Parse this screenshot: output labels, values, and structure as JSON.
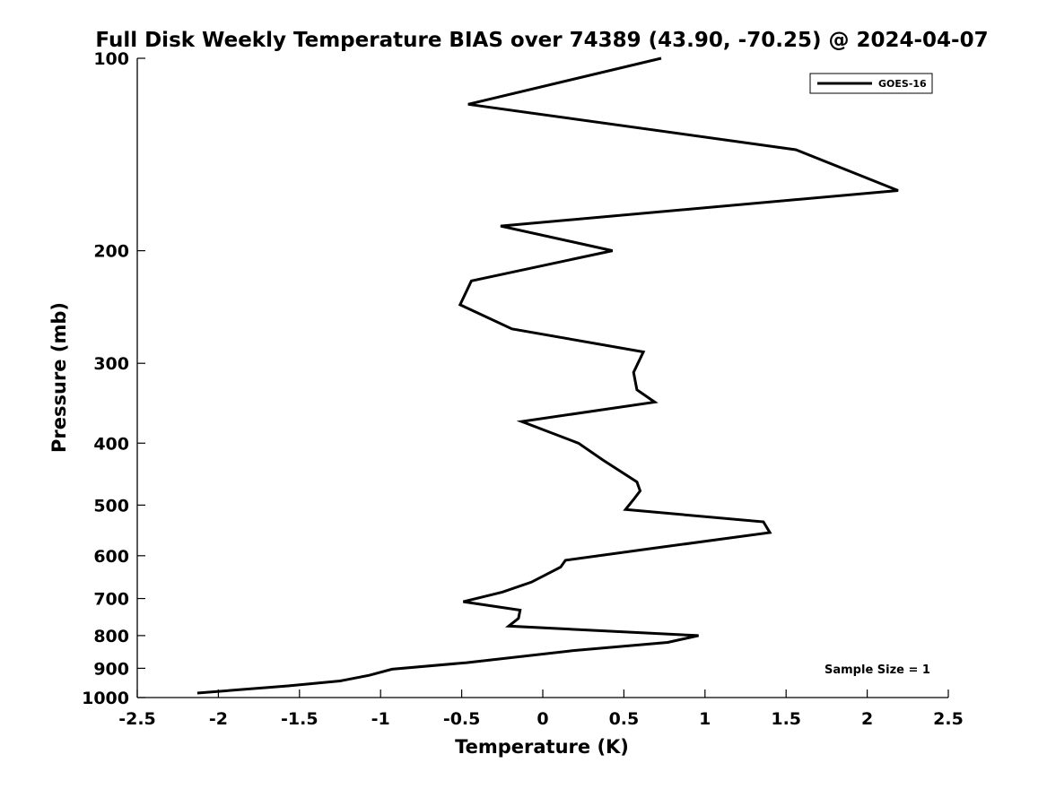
{
  "chart_data": {
    "type": "line",
    "title": "Full Disk Weekly Temperature BIAS over 74389 (43.90, -70.25) @ 2024-04-07",
    "xlabel": "Temperature (K)",
    "ylabel": "Pressure (mb)",
    "xlim": [
      -2.5,
      2.5
    ],
    "ylim": [
      100,
      1000
    ],
    "y_scale": "log",
    "y_reversed": true,
    "x_ticks": [
      "-2.5",
      "-2",
      "-1.5",
      "-1",
      "-0.5",
      "0",
      "0.5",
      "1",
      "1.5",
      "2",
      "2.5"
    ],
    "y_ticks": [
      "100",
      "200",
      "300",
      "400",
      "500",
      "600",
      "700",
      "800",
      "900",
      "1000"
    ],
    "grid": false,
    "legend": {
      "position": "top-right",
      "entries": [
        "GOES-16"
      ]
    },
    "annotation": "Sample Size = 1",
    "series": [
      {
        "name": "GOES-16",
        "color": "#000000",
        "points": [
          {
            "x": 0.73,
            "y": 100
          },
          {
            "x": -0.46,
            "y": 118
          },
          {
            "x": 1.56,
            "y": 139
          },
          {
            "x": 2.19,
            "y": 161
          },
          {
            "x": -0.26,
            "y": 183
          },
          {
            "x": 0.43,
            "y": 200
          },
          {
            "x": -0.44,
            "y": 223
          },
          {
            "x": -0.51,
            "y": 243
          },
          {
            "x": -0.19,
            "y": 265
          },
          {
            "x": 0.62,
            "y": 288
          },
          {
            "x": 0.56,
            "y": 310
          },
          {
            "x": 0.58,
            "y": 330
          },
          {
            "x": 0.69,
            "y": 345
          },
          {
            "x": -0.13,
            "y": 370
          },
          {
            "x": 0.22,
            "y": 400
          },
          {
            "x": 0.37,
            "y": 425
          },
          {
            "x": 0.58,
            "y": 460
          },
          {
            "x": 0.6,
            "y": 475
          },
          {
            "x": 0.56,
            "y": 490
          },
          {
            "x": 0.51,
            "y": 508
          },
          {
            "x": 1.36,
            "y": 531
          },
          {
            "x": 1.4,
            "y": 552
          },
          {
            "x": 0.66,
            "y": 585
          },
          {
            "x": 0.14,
            "y": 610
          },
          {
            "x": 0.11,
            "y": 625
          },
          {
            "x": -0.07,
            "y": 660
          },
          {
            "x": -0.25,
            "y": 684
          },
          {
            "x": -0.49,
            "y": 708
          },
          {
            "x": -0.14,
            "y": 730
          },
          {
            "x": -0.15,
            "y": 752
          },
          {
            "x": -0.21,
            "y": 773
          },
          {
            "x": 0.96,
            "y": 800
          },
          {
            "x": 0.77,
            "y": 820
          },
          {
            "x": 0.18,
            "y": 845
          },
          {
            "x": -0.47,
            "y": 882
          },
          {
            "x": -0.93,
            "y": 903
          },
          {
            "x": -1.07,
            "y": 923
          },
          {
            "x": -1.25,
            "y": 942
          },
          {
            "x": -1.57,
            "y": 959
          },
          {
            "x": -2.13,
            "y": 984
          }
        ]
      }
    ]
  }
}
